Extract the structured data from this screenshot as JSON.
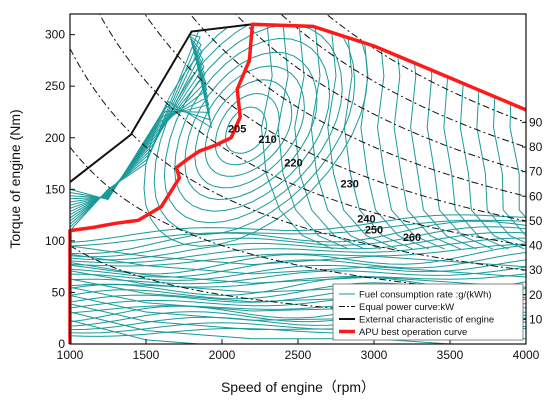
{
  "chart_data": {
    "type": "line",
    "title": "",
    "xlabel": "Speed of engine（rpm）",
    "ylabel": "Torque of engine (Nm)",
    "xlim": [
      1000,
      4000
    ],
    "ylim": [
      0,
      320
    ],
    "x_ticks": [
      1000,
      1500,
      2000,
      2500,
      3000,
      3500,
      4000
    ],
    "y_ticks": [
      0,
      50,
      100,
      150,
      200,
      250,
      300
    ],
    "grid": false,
    "legend_position": "bottom-right",
    "colors": {
      "fuel": "#1a9a9a",
      "power": "#111111",
      "external": "#111111",
      "apu": "#ff1a1a"
    },
    "legend": [
      {
        "key": "fuel",
        "label": "Fuel consumption rate :g/(kWh)"
      },
      {
        "key": "power",
        "label": "Equal power curve:kW"
      },
      {
        "key": "external",
        "label": "External characteristic of engine"
      },
      {
        "key": "apu",
        "label": "APU best operation curve"
      }
    ],
    "external_characteristic": {
      "x": [
        1000,
        1400,
        1800,
        2200,
        2600,
        3000,
        3500,
        4000
      ],
      "y": [
        157,
        203,
        303,
        310,
        308,
        289,
        258,
        227
      ]
    },
    "apu_best_operation": {
      "x": [
        1000,
        1150,
        1300,
        1450,
        1600,
        1720,
        1700,
        1780,
        1850,
        1960,
        2060,
        2120,
        2100,
        2180,
        2200,
        2600,
        3000,
        3500,
        4000
      ],
      "y": [
        110,
        113,
        117,
        120,
        133,
        161,
        171,
        180,
        187,
        193,
        200,
        220,
        247,
        275,
        310,
        308,
        289,
        258,
        227
      ]
    },
    "equal_power_labels": [
      "10",
      "20",
      "30",
      "40",
      "50",
      "60",
      "70",
      "80",
      "90"
    ],
    "equal_power_kw": [
      10,
      20,
      30,
      40,
      50,
      60,
      70,
      80,
      90
    ],
    "fuel_consumption_labels": [
      {
        "text": "205",
        "x": 2100,
        "y": 205
      },
      {
        "text": "210",
        "x": 2300,
        "y": 195
      },
      {
        "text": "220",
        "x": 2470,
        "y": 172
      },
      {
        "text": "230",
        "x": 2840,
        "y": 152
      },
      {
        "text": "240",
        "x": 2950,
        "y": 118
      },
      {
        "text": "250",
        "x": 3000,
        "y": 107
      },
      {
        "text": "260",
        "x": 3250,
        "y": 100
      }
    ]
  }
}
